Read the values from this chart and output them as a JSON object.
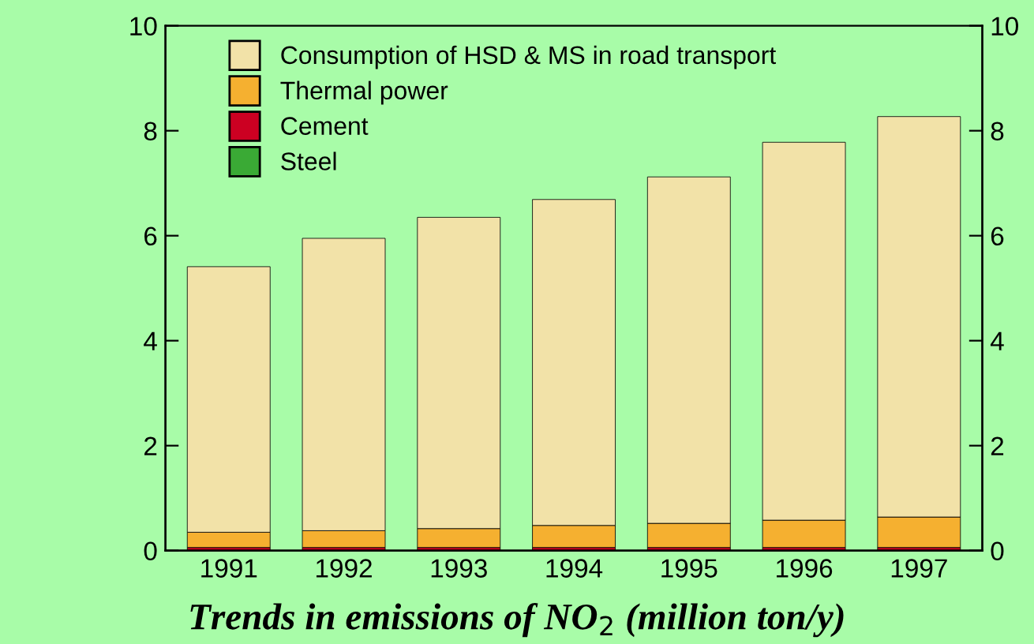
{
  "chart_data": {
    "type": "bar",
    "title": "Trends in emissions of NO$_{2}$ (million ton/y)",
    "categories": [
      "1991",
      "1992",
      "1993",
      "1994",
      "1995",
      "1996",
      "1997"
    ],
    "stacked": true,
    "series": [
      {
        "name": "Steel",
        "color": "#3aaa35",
        "values": [
          null,
          null,
          null,
          null,
          null,
          null,
          null
        ]
      },
      {
        "name": "Cement",
        "color": "#cc0022",
        "values": [
          0.06,
          0.06,
          0.06,
          0.06,
          0.06,
          0.06,
          0.06
        ]
      },
      {
        "name": "Thermal power",
        "color": "#f5b030",
        "values": [
          0.29,
          0.32,
          0.36,
          0.42,
          0.46,
          0.52,
          0.58
        ]
      },
      {
        "name": "Consumption of HSD & MS in road transport",
        "color": "#f2e2a8",
        "values": [
          5.06,
          5.57,
          5.93,
          6.21,
          6.6,
          7.2,
          7.63
        ]
      }
    ],
    "ylim": [
      0,
      10
    ],
    "yticks": [
      0,
      2,
      4,
      6,
      8,
      10
    ],
    "y2lim": [
      0,
      10
    ],
    "y2ticks": [
      0,
      2,
      4,
      6,
      8,
      10
    ],
    "legend": "top left",
    "grid": false
  }
}
